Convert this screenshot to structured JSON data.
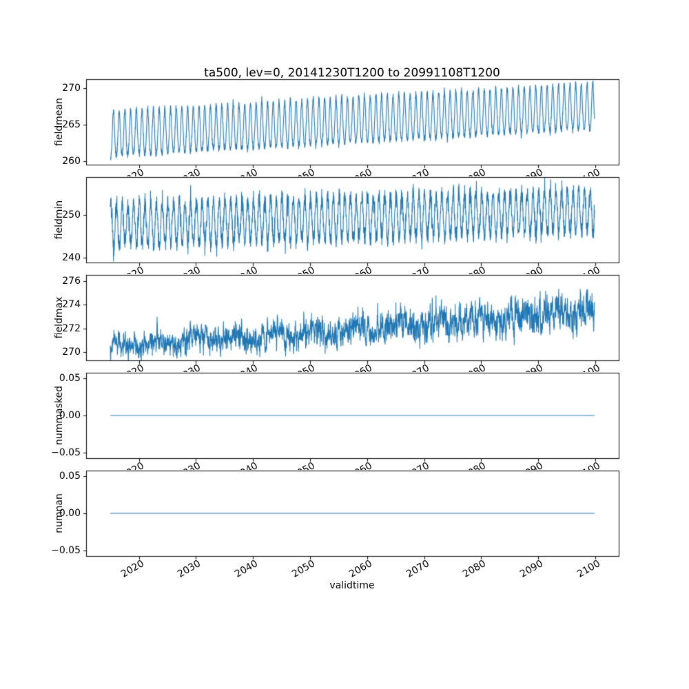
{
  "figure": {
    "title": "ta500, lev=0, 20141230T1200 to 20991108T1200",
    "xlabel": "validtime",
    "background_color": "#ffffff",
    "line_color": "#1f77b4",
    "spine_color": "#000000"
  },
  "chart_data": {
    "type": "line",
    "title": "ta500, lev=0, 20141230T1200 to 20991108T1200",
    "xlabel": "validtime",
    "legend": "none",
    "grid": false,
    "x_range": [
      2014.99,
      2099.85
    ],
    "x_ticks": [
      2020,
      2030,
      2040,
      2050,
      2060,
      2070,
      2080,
      2090,
      2100
    ],
    "x_tick_labels": [
      "2020",
      "2030",
      "2040",
      "2050",
      "2060",
      "2070",
      "2080",
      "2090",
      "2100"
    ],
    "x_tick_rotation_deg": 30,
    "n_points": 3100,
    "subplots": [
      {
        "ylabel": "fieldmean",
        "ylim": [
          259.5,
          271.2
        ],
        "yticks": [
          260,
          265,
          270
        ],
        "yticklabels": [
          "260",
          "265",
          "270"
        ],
        "series": {
          "kind": "seasonal",
          "base_start": 263.4,
          "base_end": 267.2,
          "amplitude": 3.1,
          "second_harmonic": 0.12,
          "period_years": 1,
          "phase": 0.54,
          "noise": 0.25,
          "seed": 11,
          "summary": "annual oscillation ~260.3-266.8 K in 2015 rising to ~264-270.6 K by 2100"
        }
      },
      {
        "ylabel": "fieldmin",
        "ylim": [
          238.8,
          258.8
        ],
        "yticks": [
          240,
          250
        ],
        "yticklabels": [
          "240",
          "250"
        ],
        "series": {
          "kind": "seasonal",
          "base_start": 247.5,
          "base_end": 250.8,
          "amplitude": 5.0,
          "second_harmonic": 0.0,
          "period_years": 1,
          "phase": 0.08,
          "noise": 1.15,
          "seed": 22,
          "summary": "ragged annual oscillation ~240-254 K rising to ~244-258 K"
        }
      },
      {
        "ylabel": "fieldmax",
        "ylim": [
          269.3,
          276.5
        ],
        "yticks": [
          270,
          272,
          274,
          276
        ],
        "yticklabels": [
          "270",
          "272",
          "274",
          "276"
        ],
        "series": {
          "kind": "noisy_trend",
          "base_start": 270.4,
          "base_end": 273.4,
          "amplitude": 0.3,
          "period_years": 7,
          "phase": 0,
          "ar_phi": 0.6,
          "noise": 0.42,
          "spike_prob": 0.01,
          "seed": 33,
          "summary": "noisy series drifting from ~270.4 K up to ~273.5 K with late spikes to ~276 K"
        }
      },
      {
        "ylabel": "nummasked",
        "ylim": [
          -0.0575,
          0.0575
        ],
        "yticks": [
          0.05,
          0.0,
          -0.05
        ],
        "yticklabels": [
          "0.05",
          "0.00",
          "−0.05"
        ],
        "series": {
          "kind": "constant",
          "value": 0,
          "summary": "constant zero line"
        }
      },
      {
        "ylabel": "numnan",
        "ylim": [
          -0.0575,
          0.0575
        ],
        "yticks": [
          0.05,
          0.0,
          -0.05
        ],
        "yticklabels": [
          "0.05",
          "0.00",
          "−0.05"
        ],
        "series": {
          "kind": "constant",
          "value": 0,
          "summary": "constant zero line"
        }
      }
    ]
  }
}
